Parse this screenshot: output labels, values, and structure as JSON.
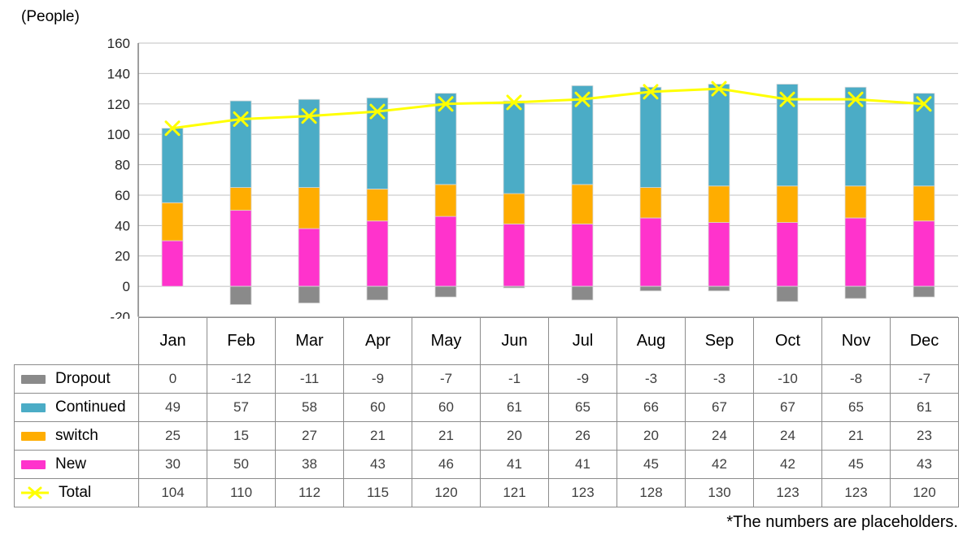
{
  "y_axis_title": "(People)",
  "footnote": "*The numbers are placeholders.",
  "colors": {
    "dropout": "#8A8A8A",
    "continued": "#4BACC6",
    "switch": "#FFAD00",
    "new": "#FF33CC",
    "total_line": "#FFFF00",
    "gridline": "#C0C0C0",
    "axis": "#7F7F7F",
    "bar_outline": "#D9D9D9",
    "table_border": "#8C8C8C",
    "number_text": "#3F3F3F",
    "label_text": "#000000"
  },
  "chart_data": {
    "type": "combo-stacked-bar-line",
    "categories": [
      "Jan",
      "Feb",
      "Mar",
      "Apr",
      "May",
      "Jun",
      "Jul",
      "Aug",
      "Sep",
      "Oct",
      "Nov",
      "Dec"
    ],
    "series": [
      {
        "name": "Dropout",
        "chart": "bar",
        "color": "#8A8A8A",
        "values": [
          0,
          -12,
          -11,
          -9,
          -7,
          -1,
          -9,
          -3,
          -3,
          -10,
          -8,
          -7
        ]
      },
      {
        "name": "Continued",
        "chart": "bar",
        "color": "#4BACC6",
        "values": [
          49,
          57,
          58,
          60,
          60,
          61,
          65,
          66,
          67,
          67,
          65,
          61
        ]
      },
      {
        "name": "switch",
        "chart": "bar",
        "color": "#FFAD00",
        "values": [
          25,
          15,
          27,
          21,
          21,
          20,
          26,
          20,
          24,
          24,
          21,
          23
        ]
      },
      {
        "name": "New",
        "chart": "bar",
        "color": "#FF33CC",
        "values": [
          30,
          50,
          38,
          43,
          46,
          41,
          41,
          45,
          42,
          42,
          45,
          43
        ]
      },
      {
        "name": "Total",
        "chart": "line",
        "color": "#FFFF00",
        "values": [
          104,
          110,
          112,
          115,
          120,
          121,
          123,
          128,
          130,
          123,
          123,
          120
        ]
      }
    ],
    "stack_order_bottom_to_top": [
      "New",
      "switch",
      "Continued"
    ],
    "negative_series": "Dropout",
    "ylim": [
      -20,
      160
    ],
    "ytick_step": 20,
    "grid": true,
    "legend_position": "table-rows-left"
  }
}
